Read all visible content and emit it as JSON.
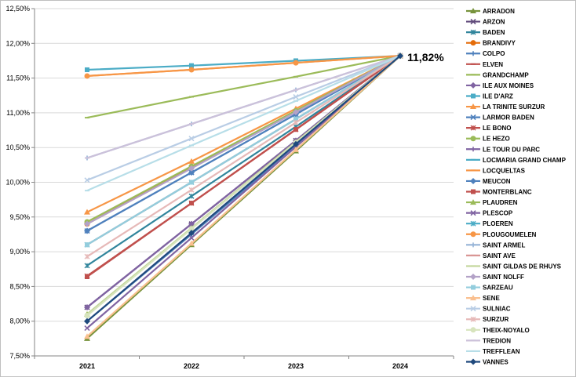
{
  "chart_data": {
    "type": "line",
    "categories": [
      "2021",
      "2022",
      "2023",
      "2024"
    ],
    "ylim": [
      0.075,
      0.125
    ],
    "yticks": [
      "7,50%",
      "8,00%",
      "8,50%",
      "9,00%",
      "9,50%",
      "10,00%",
      "10,50%",
      "11,00%",
      "11,50%",
      "12,00%",
      "12,50%"
    ],
    "grid": true,
    "legend_position": "right",
    "annotation": "11,82%",
    "series": [
      {
        "name": "ARRADON",
        "color": "#77933C",
        "marker": "triangle",
        "values": [
          0.0775,
          0.091,
          0.1045,
          0.1182
        ]
      },
      {
        "name": "ARZON",
        "color": "#604A7B",
        "marker": "x",
        "values": [
          0.082,
          0.094,
          0.106,
          0.1182
        ]
      },
      {
        "name": "BADEN",
        "color": "#31859C",
        "marker": "star",
        "values": [
          0.088,
          0.098,
          0.108,
          0.1182
        ]
      },
      {
        "name": "BRANDIVY",
        "color": "#E46C0A",
        "marker": "circle",
        "values": [
          0.094,
          0.1022,
          0.1102,
          0.1182
        ]
      },
      {
        "name": "COLPO",
        "color": "#4F81BD",
        "marker": "plus",
        "values": [
          0.08,
          0.0925,
          0.1052,
          0.1182
        ]
      },
      {
        "name": "ELVEN",
        "color": "#C0504D",
        "marker": "dash",
        "values": [
          0.0865,
          0.097,
          0.1076,
          0.1182
        ]
      },
      {
        "name": "GRANDCHAMP",
        "color": "#9BBB59",
        "marker": "dash",
        "values": [
          0.1093,
          0.1123,
          0.1152,
          0.1182
        ]
      },
      {
        "name": "ILE AUX MOINES",
        "color": "#8064A2",
        "marker": "diamond",
        "values": [
          0.082,
          0.094,
          0.106,
          0.1182
        ]
      },
      {
        "name": "ILE D'ARZ",
        "color": "#4BACC6",
        "marker": "square",
        "values": [
          0.1162,
          0.1168,
          0.1175,
          0.1182
        ]
      },
      {
        "name": "LA TRINITE SURZUR",
        "color": "#F79646",
        "marker": "triangle",
        "values": [
          0.0957,
          0.103,
          0.1106,
          0.1182
        ]
      },
      {
        "name": "LARMOR BADEN",
        "color": "#4F81BD",
        "marker": "x",
        "values": [
          0.093,
          0.1014,
          0.1098,
          0.1182
        ]
      },
      {
        "name": "LE BONO",
        "color": "#C0504D",
        "marker": "star",
        "values": [
          0.0865,
          0.097,
          0.1076,
          0.1182
        ]
      },
      {
        "name": "LE HEZO",
        "color": "#9BBB59",
        "marker": "circle",
        "values": [
          0.0943,
          0.1023,
          0.1103,
          0.1182
        ]
      },
      {
        "name": "LE TOUR DU PARC",
        "color": "#8064A2",
        "marker": "plus",
        "values": [
          0.082,
          0.094,
          0.106,
          0.1182
        ]
      },
      {
        "name": "LOCMARIA GRAND CHAMP",
        "color": "#4BACC6",
        "marker": "dash",
        "values": [
          0.091,
          0.1,
          0.1091,
          0.1182
        ]
      },
      {
        "name": "LOCQUELTAS",
        "color": "#F79646",
        "marker": "dash",
        "values": [
          0.1153,
          0.1162,
          0.1172,
          0.1182
        ]
      },
      {
        "name": "MEUCON",
        "color": "#4F81BD",
        "marker": "diamond",
        "values": [
          0.093,
          0.1014,
          0.1098,
          0.1182
        ]
      },
      {
        "name": "MONTERBLANC",
        "color": "#C0504D",
        "marker": "square",
        "values": [
          0.0864,
          0.097,
          0.1076,
          0.1182
        ]
      },
      {
        "name": "PLAUDREN",
        "color": "#9BBB59",
        "marker": "triangle",
        "values": [
          0.081,
          0.0934,
          0.1058,
          0.1182
        ]
      },
      {
        "name": "PLESCOP",
        "color": "#8064A2",
        "marker": "x",
        "values": [
          0.079,
          0.092,
          0.1051,
          0.1182
        ]
      },
      {
        "name": "PLOEREN",
        "color": "#4BACC6",
        "marker": "star",
        "values": [
          0.091,
          0.1,
          0.1091,
          0.1182
        ]
      },
      {
        "name": "PLOUGOUMELEN",
        "color": "#F79646",
        "marker": "circle",
        "values": [
          0.1153,
          0.1162,
          0.1172,
          0.1182
        ]
      },
      {
        "name": "SAINT ARMEL",
        "color": "#95B3D7",
        "marker": "plus",
        "values": [
          0.1035,
          0.1084,
          0.1133,
          0.1182
        ]
      },
      {
        "name": "SAINT AVE",
        "color": "#D99694",
        "marker": "dash",
        "values": [
          0.091,
          0.1,
          0.1091,
          0.1182
        ]
      },
      {
        "name": "SAINT GILDAS DE RHUYS",
        "color": "#C3D69B",
        "marker": "dash",
        "values": [
          0.081,
          0.0934,
          0.1058,
          0.1182
        ]
      },
      {
        "name": "SAINT NOLFF",
        "color": "#B3A2C7",
        "marker": "diamond",
        "values": [
          0.094,
          0.102,
          0.1101,
          0.1182
        ]
      },
      {
        "name": "SARZEAU",
        "color": "#93CDDD",
        "marker": "square",
        "values": [
          0.091,
          0.1,
          0.1091,
          0.1182
        ]
      },
      {
        "name": "SENE",
        "color": "#FAC090",
        "marker": "triangle",
        "values": [
          0.0778,
          0.0912,
          0.1047,
          0.1182
        ]
      },
      {
        "name": "SULNIAC",
        "color": "#B9CDE5",
        "marker": "x",
        "values": [
          0.1003,
          0.1063,
          0.1123,
          0.1182
        ]
      },
      {
        "name": "SURZUR",
        "color": "#E6B9B8",
        "marker": "star",
        "values": [
          0.0893,
          0.0989,
          0.1086,
          0.1182
        ]
      },
      {
        "name": "THEIX-NOYALO",
        "color": "#D7E4BD",
        "marker": "circle",
        "values": [
          0.0808,
          0.0933,
          0.1057,
          0.1182
        ]
      },
      {
        "name": "TREDION",
        "color": "#CCC1DA",
        "marker": "dash",
        "values": [
          0.1035,
          0.1084,
          0.1133,
          0.1182
        ]
      },
      {
        "name": "TREFFLEAN",
        "color": "#B7DEE8",
        "marker": "dash",
        "values": [
          0.0988,
          0.1053,
          0.1117,
          0.1182
        ]
      },
      {
        "name": "VANNES",
        "color": "#1F497D",
        "marker": "diamond",
        "values": [
          0.08,
          0.0927,
          0.1055,
          0.1182
        ]
      }
    ]
  }
}
